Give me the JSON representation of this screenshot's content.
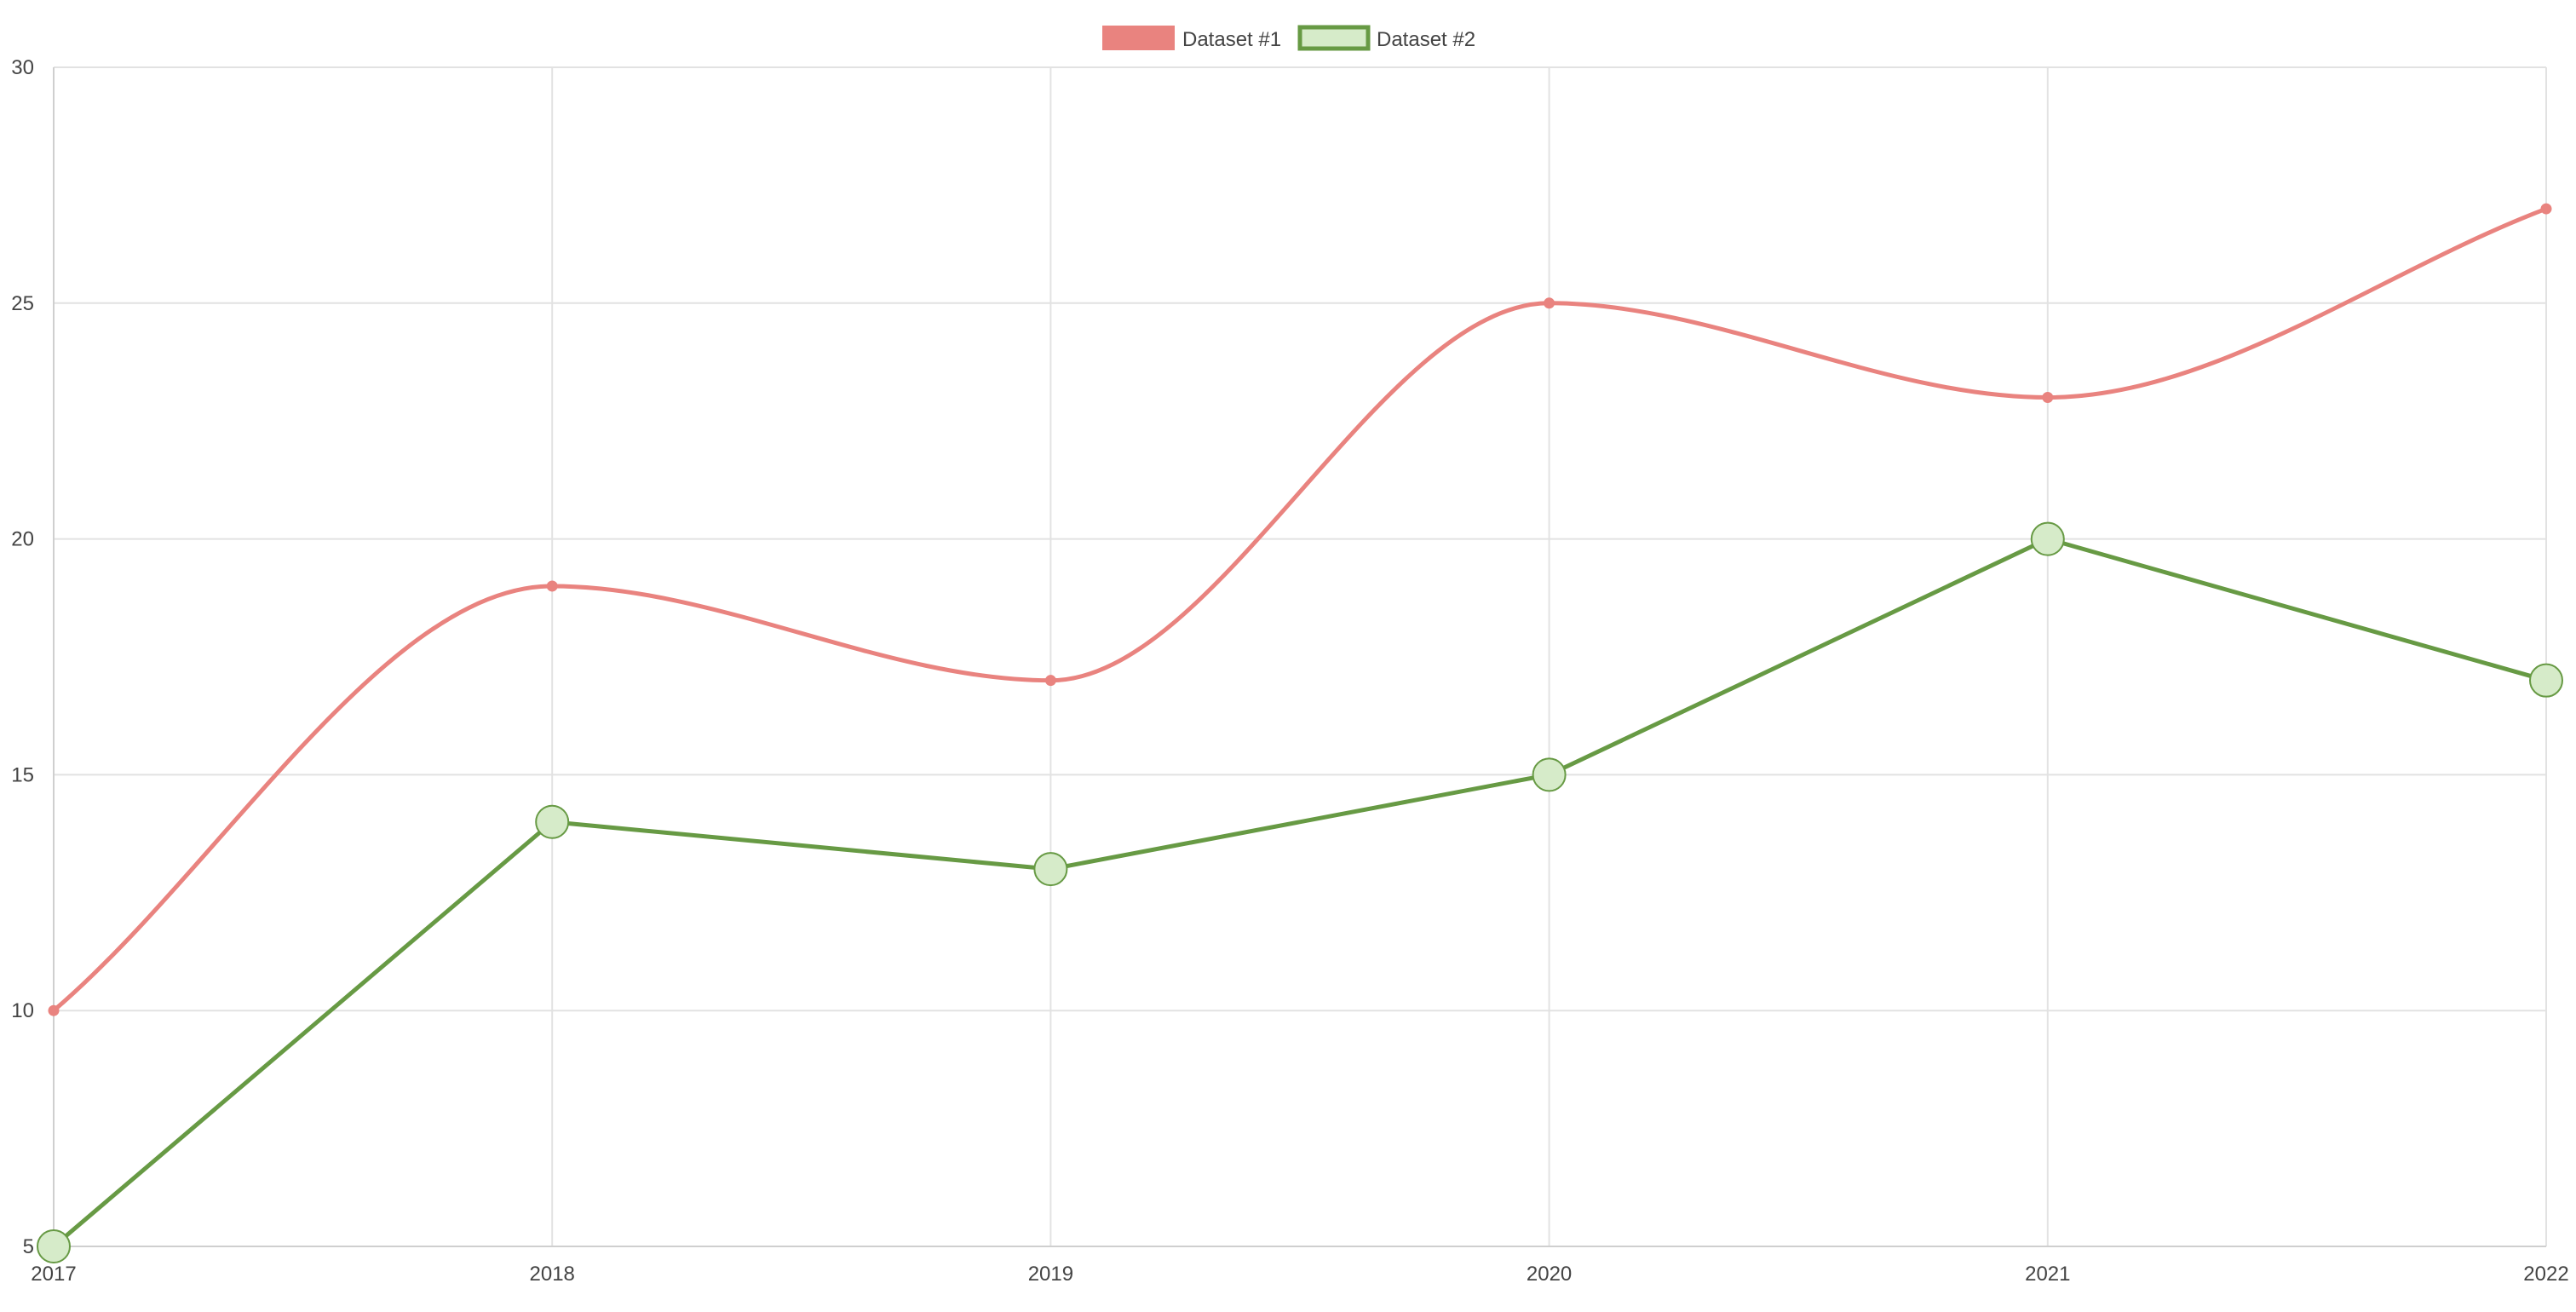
{
  "chart_data": {
    "type": "line",
    "categories": [
      "2017",
      "2018",
      "2019",
      "2020",
      "2021",
      "2022"
    ],
    "series": [
      {
        "name": "Dataset #1",
        "values": [
          10,
          19,
          17,
          25,
          23,
          27
        ],
        "color": "#e9837f",
        "fill": "#e9837f",
        "curve": "smooth",
        "point_style": "small-dot"
      },
      {
        "name": "Dataset #2",
        "values": [
          5,
          14,
          13,
          15,
          20,
          17
        ],
        "color": "#679a44",
        "fill": "#d6ebc9",
        "curve": "straight",
        "point_style": "large-circle"
      }
    ],
    "ylim": [
      5,
      30
    ],
    "yticks": [
      "5",
      "10",
      "15",
      "20",
      "25",
      "30"
    ],
    "grid": true,
    "legend": "top-center",
    "title": "",
    "xlabel": "",
    "ylabel": ""
  }
}
